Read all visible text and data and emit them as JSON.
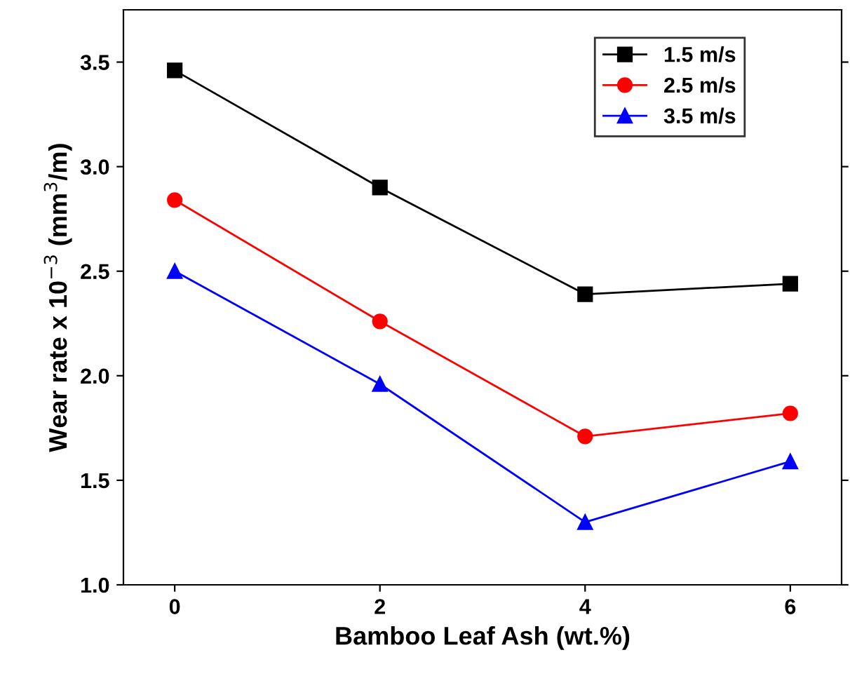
{
  "chart_data": {
    "type": "line",
    "xlabel": "Bamboo Leaf Ash (wt.%)",
    "ylabel": "Wear rate x 10$^{−3}$ (mm$^{3}$/m)",
    "x": [
      0,
      2,
      4,
      6
    ],
    "series": [
      {
        "name": "1.5 m/s",
        "color": "#000000",
        "marker": "square",
        "values": [
          3.46,
          2.9,
          2.39,
          2.44
        ]
      },
      {
        "name": "2.5 m/s",
        "color": "#ff0000",
        "marker": "circle",
        "values": [
          2.84,
          2.26,
          1.71,
          1.82
        ]
      },
      {
        "name": "3.5 m/s",
        "color": "#0000ff",
        "marker": "triangle",
        "values": [
          2.5,
          1.96,
          1.3,
          1.59
        ]
      }
    ],
    "xlim": [
      -0.5,
      6.5
    ],
    "xticks": [
      0,
      2,
      4,
      6
    ],
    "ylim": [
      1.0,
      3.75
    ],
    "yticks": [
      {
        "value": 1.0,
        "label": "1.0"
      },
      {
        "value": 1.5,
        "label": "1.5"
      },
      {
        "value": 2.0,
        "label": "2.0"
      },
      {
        "value": 2.5,
        "label": "2.5"
      },
      {
        "value": 3.0,
        "label": "3.0"
      },
      {
        "value": 3.5,
        "label": "3.5"
      }
    ],
    "grid": false,
    "legend": "top right",
    "line_style": "solid"
  }
}
